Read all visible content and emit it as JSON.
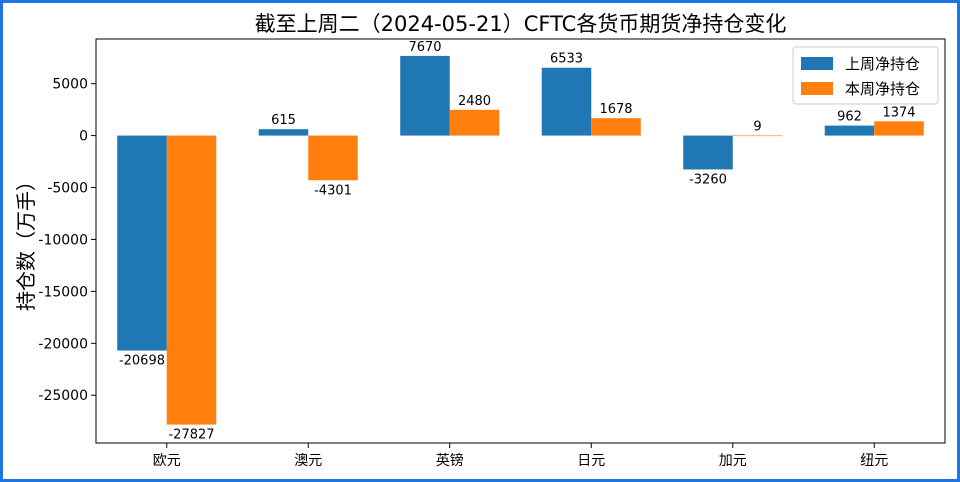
{
  "chart_data": {
    "type": "bar",
    "title": "截至上周二（2024-05-21）CFTC各货币期货净持仓变化",
    "xlabel": "",
    "ylabel": "持仓数（万手）",
    "categories": [
      "欧元",
      "澳元",
      "英镑",
      "日元",
      "加元",
      "纽元"
    ],
    "series": [
      {
        "name": "上周净持仓",
        "color": "#1f77b4",
        "values": [
          -20698,
          615,
          7670,
          6533,
          -3260,
          962
        ]
      },
      {
        "name": "本周净持仓",
        "color": "#ff7f0e",
        "values": [
          -27827,
          -4301,
          2480,
          1678,
          9,
          1374
        ]
      }
    ],
    "ylim": [
      -29600,
      9300
    ],
    "yticks": [
      5000,
      0,
      -5000,
      -10000,
      -15000,
      -20000,
      -25000
    ],
    "grid": false,
    "legend": "top-right"
  }
}
